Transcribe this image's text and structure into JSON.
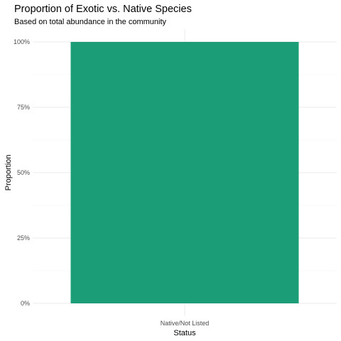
{
  "chart_data": {
    "type": "bar",
    "title": "Proportion of Exotic vs. Native Species",
    "subtitle": "Based on total abundance in the community",
    "xlabel": "Status",
    "ylabel": "Proportion",
    "categories": [
      "Native/Not Listed"
    ],
    "values": [
      1.0
    ],
    "ylim": [
      0,
      1
    ],
    "yticks": [
      0,
      0.25,
      0.5,
      0.75,
      1.0
    ],
    "ytick_labels": [
      "0%",
      "25%",
      "50%",
      "75%",
      "100%"
    ],
    "bar_color": "#1b9e77",
    "grid": true,
    "legend": "none"
  }
}
